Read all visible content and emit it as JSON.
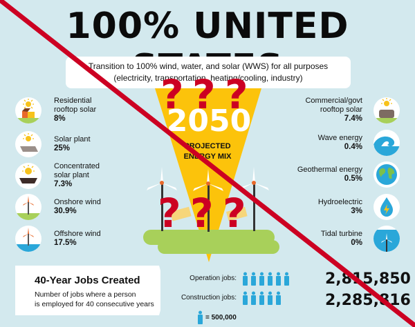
{
  "header": {
    "title": "100% UNITED STATES",
    "subtitle_line1": "Transition to 100% wind, water, and solar (WWS) for all purposes",
    "subtitle_line2": "(electricity, transportation, heating/cooling, industry)"
  },
  "center": {
    "year": "2050",
    "label_line1": "PROJECTED",
    "label_line2": "ENERGY MIX",
    "overlay_marks": [
      "?",
      "?",
      "?",
      "?",
      "?",
      "?"
    ]
  },
  "left_items": [
    {
      "name": "Residential rooftop solar",
      "line1": "Residential",
      "line2": "rooftop solar",
      "percent": "8%",
      "icon": "house-sun-icon"
    },
    {
      "name": "Solar plant",
      "line1": "Solar plant",
      "line2": "",
      "percent": "25%",
      "icon": "solar-panel-icon"
    },
    {
      "name": "Concentrated solar plant",
      "line1": "Concentrated",
      "line2": "solar plant",
      "percent": "7.3%",
      "icon": "concentrated-solar-icon"
    },
    {
      "name": "Onshore wind",
      "line1": "Onshore wind",
      "line2": "",
      "percent": "30.9%",
      "icon": "onshore-wind-icon"
    },
    {
      "name": "Offshore wind",
      "line1": "Offshore wind",
      "line2": "",
      "percent": "17.5%",
      "icon": "offshore-wind-icon"
    }
  ],
  "right_items": [
    {
      "name": "Commercial/govt rooftop solar",
      "line1": "Commercial/govt",
      "line2": "rooftop solar",
      "percent": "7.4%",
      "icon": "commercial-rooftop-icon"
    },
    {
      "name": "Wave energy",
      "line1": "Wave energy",
      "line2": "",
      "percent": "0.4%",
      "icon": "wave-icon"
    },
    {
      "name": "Geothermal energy",
      "line1": "Geothermal energy",
      "line2": "",
      "percent": "0.5%",
      "icon": "globe-icon"
    },
    {
      "name": "Hydroelectric",
      "line1": "Hydroelectric",
      "line2": "",
      "percent": "3%",
      "icon": "water-drop-bolt-icon"
    },
    {
      "name": "Tidal turbine",
      "line1": "Tidal turbine",
      "line2": "",
      "percent": "0%",
      "icon": "tidal-turbine-icon"
    }
  ],
  "jobs": {
    "title": "40-Year Jobs Created",
    "desc_line1": "Number of jobs where a person",
    "desc_line2": "is employed for 40 consecutive years",
    "operation_label": "Operation jobs:",
    "operation_value": "2,815,850",
    "operation_icons": 6,
    "construction_label": "Construction jobs:",
    "construction_value": "2,285,816",
    "construction_icons": 5,
    "legend": "= 500,000"
  },
  "colors": {
    "background": "#d3e9ee",
    "funnel": "#fcc30b",
    "grass": "#a8d05a",
    "person": "#2aa7d9",
    "slash": "#cc0022",
    "sun": "#f7c21b"
  }
}
